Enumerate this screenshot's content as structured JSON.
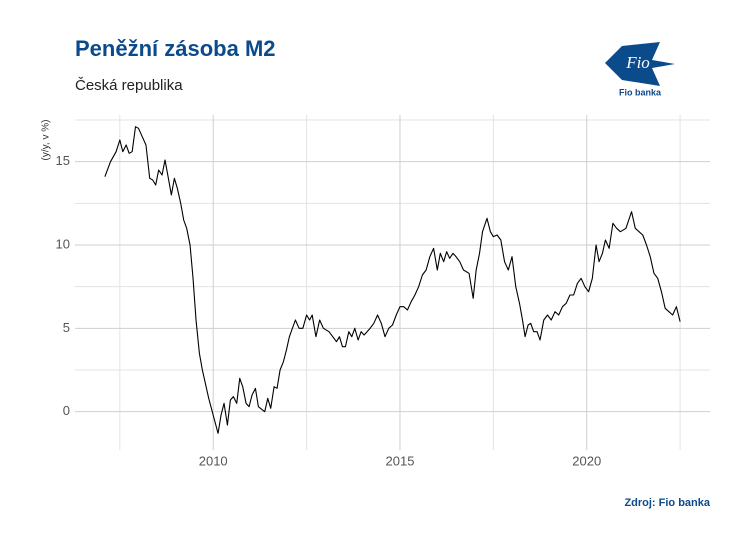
{
  "chart_data": {
    "type": "line",
    "title": "Peněžní zásoba M2",
    "subtitle": "Česká republika",
    "y_label": "(y/y, v %)",
    "source": "Zdroj: Fio banka",
    "logo_text": "Fio",
    "logo_caption": "Fio banka",
    "color": "#000000",
    "grid": true,
    "xlim": [
      2006.3,
      2023.3
    ],
    "ylim": [
      -2.3,
      17.8
    ],
    "xticks": [
      2010,
      2015,
      2020
    ],
    "yticks": [
      0,
      5,
      10,
      15
    ],
    "x_minor_ticks": [
      2007.5,
      2012.5,
      2017.5,
      2022.5
    ],
    "y_minor_ticks": [
      2.5,
      7.5,
      12.5,
      17.5
    ],
    "x": [
      2007.1,
      2007.25,
      2007.4,
      2007.5,
      2007.58,
      2007.67,
      2007.75,
      2007.83,
      2007.92,
      2008.0,
      2008.1,
      2008.2,
      2008.3,
      2008.38,
      2008.46,
      2008.54,
      2008.63,
      2008.71,
      2008.8,
      2008.88,
      2008.96,
      2009.04,
      2009.13,
      2009.21,
      2009.29,
      2009.38,
      2009.46,
      2009.54,
      2009.63,
      2009.71,
      2009.88,
      2010.13,
      2010.21,
      2010.29,
      2010.38,
      2010.46,
      2010.54,
      2010.63,
      2010.71,
      2010.79,
      2010.88,
      2010.96,
      2011.04,
      2011.13,
      2011.21,
      2011.38,
      2011.46,
      2011.54,
      2011.63,
      2011.71,
      2011.79,
      2011.88,
      2011.96,
      2012.04,
      2012.2,
      2012.3,
      2012.4,
      2012.5,
      2012.58,
      2012.65,
      2012.75,
      2012.85,
      2012.95,
      2013.1,
      2013.2,
      2013.3,
      2013.38,
      2013.46,
      2013.54,
      2013.63,
      2013.71,
      2013.79,
      2013.88,
      2013.96,
      2014.04,
      2014.2,
      2014.3,
      2014.4,
      2014.5,
      2014.6,
      2014.7,
      2014.8,
      2014.9,
      2015.0,
      2015.1,
      2015.2,
      2015.3,
      2015.4,
      2015.5,
      2015.6,
      2015.7,
      2015.8,
      2015.9,
      2016.0,
      2016.08,
      2016.17,
      2016.25,
      2016.33,
      2016.42,
      2016.5,
      2016.6,
      2016.7,
      2016.85,
      2016.96,
      2017.04,
      2017.13,
      2017.21,
      2017.33,
      2017.42,
      2017.5,
      2017.6,
      2017.7,
      2017.8,
      2017.9,
      2018.0,
      2018.1,
      2018.2,
      2018.28,
      2018.35,
      2018.43,
      2018.5,
      2018.58,
      2018.67,
      2018.75,
      2018.85,
      2018.95,
      2019.05,
      2019.15,
      2019.25,
      2019.35,
      2019.45,
      2019.55,
      2019.65,
      2019.75,
      2019.85,
      2019.95,
      2020.05,
      2020.15,
      2020.25,
      2020.33,
      2020.42,
      2020.5,
      2020.6,
      2020.7,
      2020.8,
      2020.9,
      2021.05,
      2021.2,
      2021.3,
      2021.4,
      2021.5,
      2021.6,
      2021.7,
      2021.8,
      2021.9,
      2022.0,
      2022.1,
      2022.2,
      2022.3,
      2022.4,
      2022.5
    ],
    "values": [
      14.1,
      15.0,
      15.6,
      16.3,
      15.6,
      16.0,
      15.5,
      15.6,
      17.1,
      17.0,
      16.5,
      16.0,
      14.0,
      13.9,
      13.6,
      14.5,
      14.2,
      15.1,
      14.0,
      13.0,
      14.0,
      13.4,
      12.5,
      11.5,
      11.0,
      10.0,
      8.0,
      5.5,
      3.5,
      2.5,
      0.8,
      -1.3,
      -0.2,
      0.5,
      -0.8,
      0.7,
      0.9,
      0.5,
      2.0,
      1.5,
      0.5,
      0.3,
      1.0,
      1.4,
      0.3,
      0.0,
      0.8,
      0.2,
      1.5,
      1.4,
      2.5,
      3.0,
      3.7,
      4.5,
      5.5,
      5.0,
      5.0,
      5.8,
      5.5,
      5.8,
      4.5,
      5.5,
      5.0,
      4.8,
      4.5,
      4.2,
      4.5,
      3.9,
      3.9,
      4.8,
      4.5,
      5.0,
      4.3,
      4.8,
      4.6,
      5.0,
      5.3,
      5.8,
      5.3,
      4.5,
      5.0,
      5.2,
      5.8,
      6.3,
      6.3,
      6.1,
      6.6,
      7.0,
      7.5,
      8.2,
      8.5,
      9.3,
      9.8,
      8.5,
      9.5,
      9.0,
      9.6,
      9.2,
      9.5,
      9.3,
      9.0,
      8.5,
      8.3,
      6.8,
      8.5,
      9.5,
      10.8,
      11.6,
      10.8,
      10.5,
      10.6,
      10.3,
      9.0,
      8.5,
      9.3,
      7.5,
      6.5,
      5.5,
      4.5,
      5.2,
      5.3,
      4.8,
      4.8,
      4.3,
      5.5,
      5.8,
      5.5,
      6.0,
      5.8,
      6.3,
      6.5,
      7.0,
      7.0,
      7.7,
      8.0,
      7.5,
      7.2,
      8.0,
      10.0,
      9.0,
      9.5,
      10.3,
      9.8,
      11.3,
      11.0,
      10.8,
      11.0,
      12.0,
      11.0,
      10.8,
      10.6,
      10.0,
      9.3,
      8.3,
      8.0,
      7.2,
      6.2,
      6.0,
      5.8,
      6.3,
      5.4
    ]
  }
}
